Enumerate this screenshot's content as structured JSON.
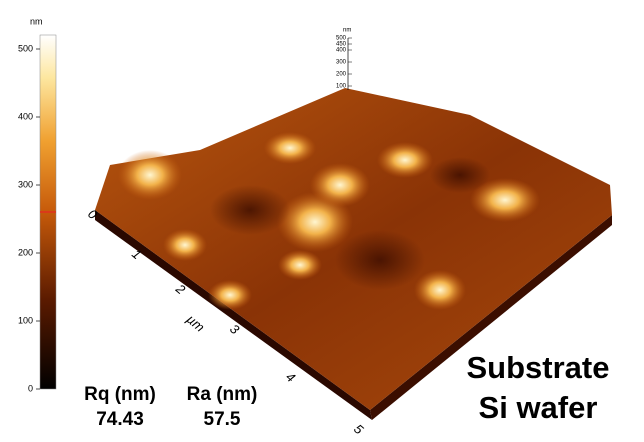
{
  "colorbar": {
    "unit": "nm",
    "ticks": [
      500,
      400,
      300,
      200,
      100,
      0
    ]
  },
  "zscale": {
    "unit": "nm",
    "ticks": [
      500,
      450,
      400,
      300,
      200,
      100
    ]
  },
  "xaxis": {
    "ticks": [
      "0",
      "1",
      "2",
      "3",
      "4",
      "5"
    ],
    "unit": "µm"
  },
  "stats": [
    {
      "label": "Rq (nm)",
      "value": "74.43"
    },
    {
      "label": "Ra (nm)",
      "value": "57.5"
    }
  ],
  "caption": [
    "Substrate",
    "Si wafer"
  ]
}
